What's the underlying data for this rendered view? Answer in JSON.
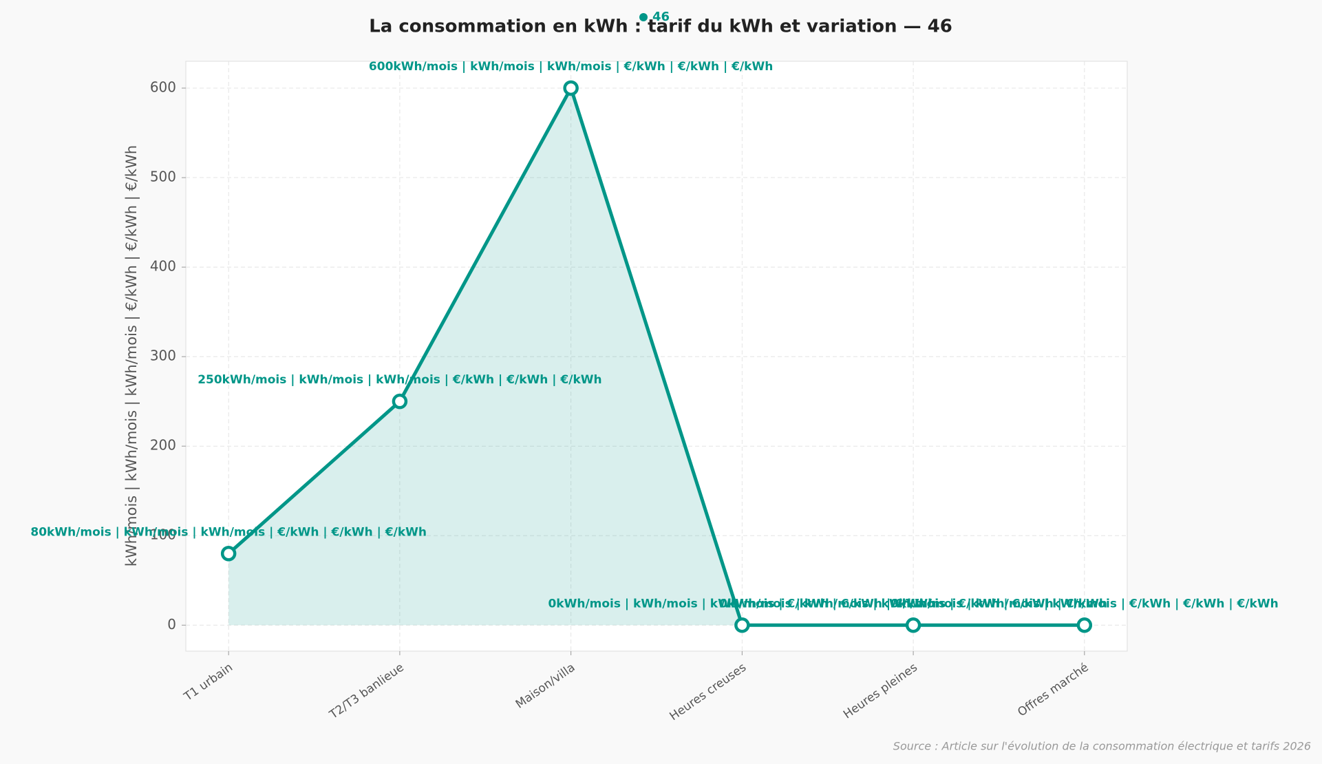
{
  "chart_data": {
    "type": "line",
    "title": "La consommation en kWh : tarif du kWh et variation — 46",
    "y_label": "kWh/mois | kWh/mois | kWh/mois | €/kWh | €/kWh | €/kWh",
    "categories": [
      "T1 urbain",
      "T2/T3 banlieue",
      "Maison/villa",
      "Heures creuses",
      "Heures pleines",
      "Offres marché"
    ],
    "series": [
      {
        "name": "46",
        "color": "#009688",
        "values": [
          80,
          250,
          600,
          0,
          0,
          0
        ],
        "value_labels": [
          "80kWh/mois | kWh/mois | kWh/mois | €/kWh | €/kWh | €/kWh",
          "250kWh/mois | kWh/mois | kWh/mois | €/kWh | €/kWh | €/kWh",
          "600kWh/mois | kWh/mois | kWh/mois | €/kWh | €/kWh | €/kWh",
          "0kWh/mois | kWh/mois | kWh/mois | €/kWh | €/kWh | €/kWh",
          "0kWh/mois | kWh/mois | kWh/mois | €/kWh | €/kWh | €/kWh",
          "0kWh/mois | kWh/mois | kWh/mois | €/kWh | €/kWh | €/kWh"
        ]
      }
    ],
    "ylim": [
      -29,
      630
    ],
    "yticks": [
      0,
      100,
      200,
      300,
      400,
      500,
      600
    ],
    "grid": true,
    "source": "Source : Article sur l'évolution de la consommation électrique et tarifs 2026"
  }
}
